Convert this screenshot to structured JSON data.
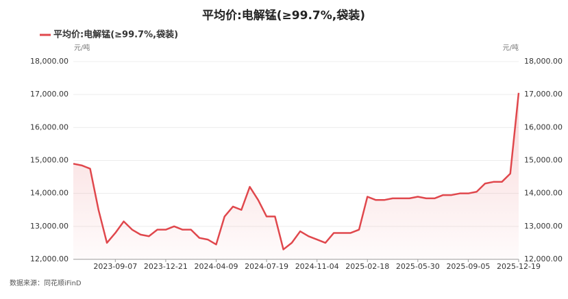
{
  "chart_data": {
    "type": "line",
    "title": "平均价:电解锰(≥99.7%,袋装)",
    "y_unit": "元/吨",
    "y2_unit": "元/吨",
    "source": "数据来源：同花顺iFinD",
    "categories": [
      null,
      null,
      null,
      null,
      null,
      "2023-09-07",
      null,
      null,
      null,
      null,
      null,
      "2023-12-21",
      null,
      null,
      null,
      null,
      null,
      "2024-04-09",
      null,
      null,
      null,
      null,
      null,
      "2024-07-19",
      null,
      null,
      null,
      null,
      null,
      "2024-11-04",
      null,
      null,
      null,
      null,
      null,
      "2025-02-18",
      null,
      null,
      null,
      null,
      null,
      "2025-05-30",
      null,
      null,
      null,
      null,
      null,
      "2025-09-05",
      null,
      null,
      null,
      null,
      null,
      "2025-12-19"
    ],
    "series": [
      {
        "name": "平均价:电解锰(≥99.7%,袋装)",
        "color": "#e0474c",
        "values": [
          14900,
          14850,
          14750,
          13500,
          12500,
          12800,
          13150,
          12900,
          12750,
          12700,
          12900,
          12900,
          13000,
          12900,
          12900,
          12650,
          12600,
          12450,
          13300,
          13600,
          13500,
          14200,
          13800,
          13300,
          13300,
          12300,
          12500,
          12850,
          12700,
          12600,
          12500,
          12800,
          12800,
          12800,
          12900,
          13900,
          13800,
          13800,
          13850,
          13850,
          13850,
          13900,
          13850,
          13850,
          13950,
          13950,
          14000,
          14000,
          14050,
          14300,
          14350,
          14350,
          14600,
          17050
        ]
      }
    ],
    "ylim": [
      12000,
      18000
    ],
    "yticks": [
      {
        "value": 12000,
        "label": "12,000.00"
      },
      {
        "value": 13000,
        "label": "13,000.00"
      },
      {
        "value": 14000,
        "label": "14,000.00"
      },
      {
        "value": 15000,
        "label": "15,000.00"
      },
      {
        "value": 16000,
        "label": "16,000.00"
      },
      {
        "value": 17000,
        "label": "17,000.00"
      },
      {
        "value": 18000,
        "label": "18,000.00"
      }
    ],
    "y2lim": [
      12000,
      18000
    ],
    "y2ticks": [
      {
        "value": 12000,
        "label": "12,000.00"
      },
      {
        "value": 13000,
        "label": "13,000.00"
      },
      {
        "value": 14000,
        "label": "14,000.00"
      },
      {
        "value": 15000,
        "label": "15,000.00"
      },
      {
        "value": 16000,
        "label": "16,000.00"
      },
      {
        "value": 17000,
        "label": "17,000.00"
      },
      {
        "value": 18000,
        "label": "18,000.00"
      }
    ],
    "grid": true
  }
}
